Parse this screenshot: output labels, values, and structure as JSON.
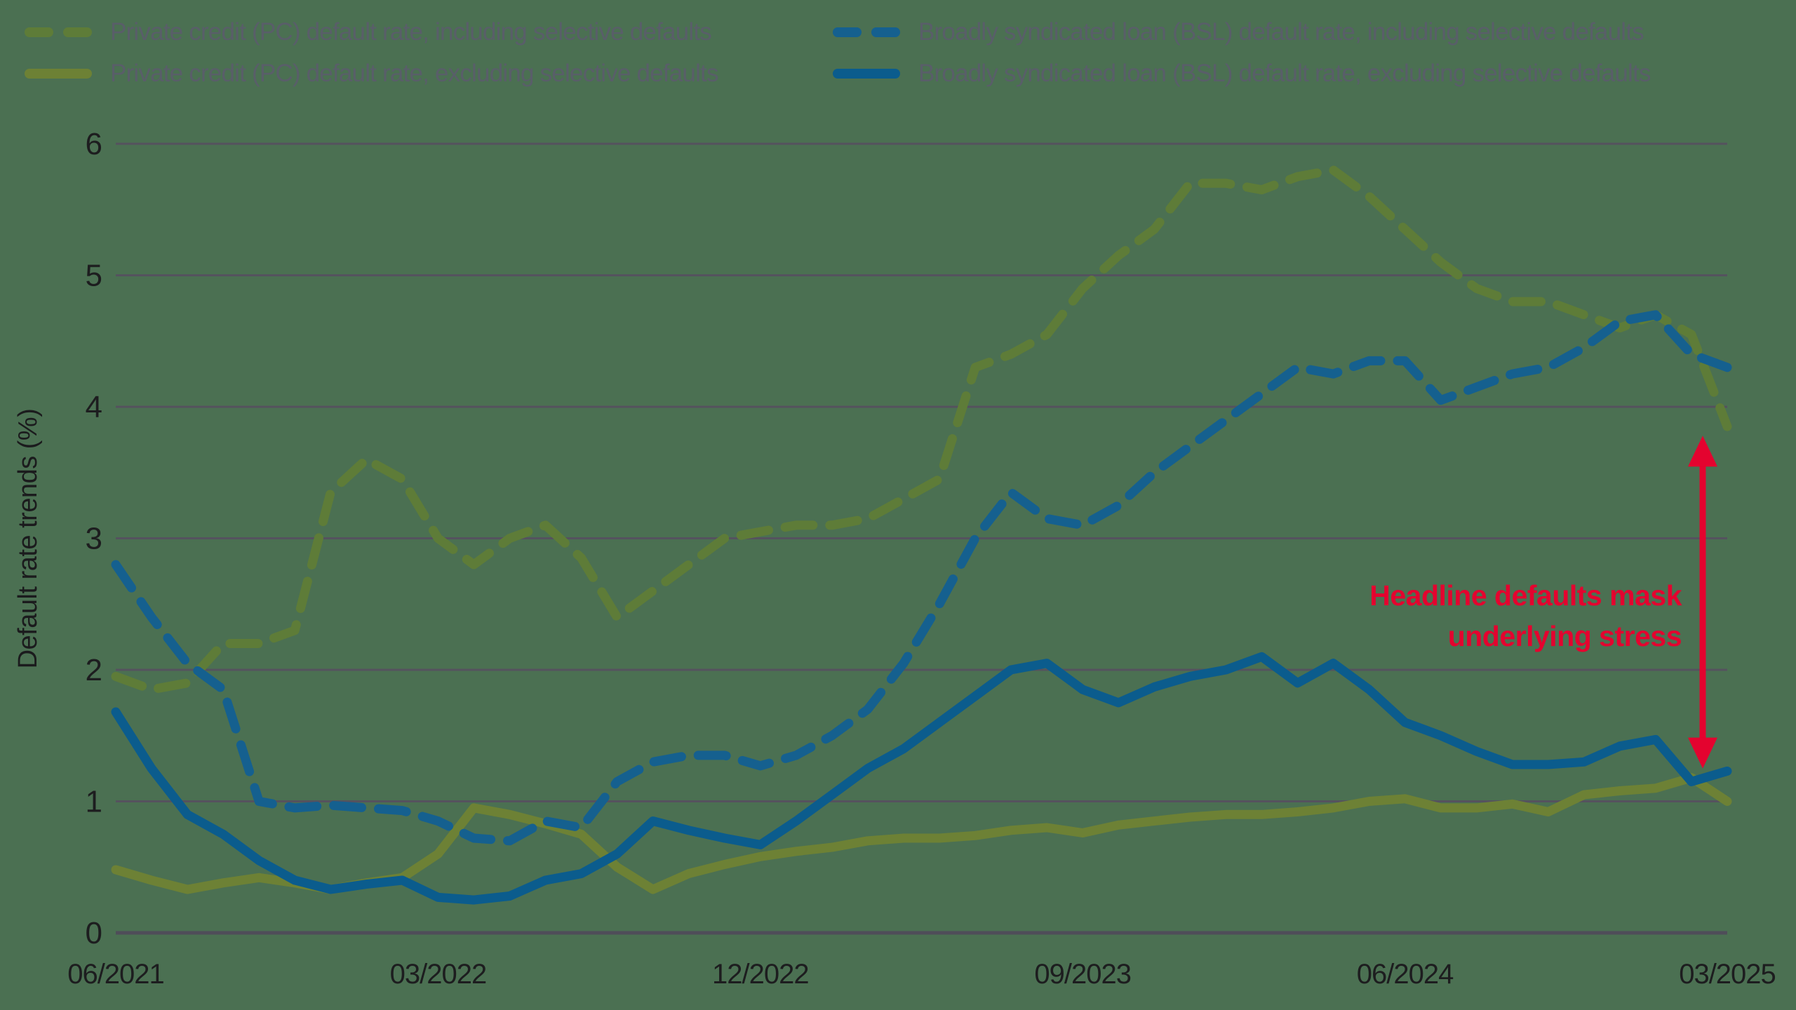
{
  "legend": {
    "items": [
      {
        "id": "pc-incl",
        "label": "Private credit (PC) default rate, including selective defaults",
        "color": "#5e7c38",
        "dashed": true
      },
      {
        "id": "pc-excl",
        "label": "Private credit (PC) default rate, excluding selective defaults",
        "color": "#6d8135",
        "dashed": false
      },
      {
        "id": "bsl-incl",
        "label": "Broadly syndicated loan (BSL) default rate, including selective defaults",
        "color": "#15608f",
        "dashed": true
      },
      {
        "id": "bsl-excl",
        "label": "Broadly syndicated loan (BSL) default rate, excluding selective defaults",
        "color": "#0b5c8d",
        "dashed": false
      }
    ]
  },
  "chart_data": {
    "type": "line",
    "title": "",
    "xlabel": "",
    "ylabel": "Default rate trends (%)",
    "ylim": [
      0,
      6
    ],
    "yticks": [
      0,
      1,
      2,
      3,
      4,
      5,
      6
    ],
    "grid": true,
    "legend_position": "top",
    "x_count": 46,
    "x_start": "06/2021",
    "x_step": "1 month",
    "x_tick_labels": [
      "06/2021",
      "03/2022",
      "12/2022",
      "09/2023",
      "06/2024",
      "03/2025"
    ],
    "x_tick_positions": [
      0,
      9,
      18,
      27,
      36,
      45
    ],
    "series": [
      {
        "name": "Private credit (PC) default rate, including selective defaults",
        "color": "#5e7c38",
        "dashed": true,
        "values": [
          1.95,
          1.85,
          1.9,
          2.2,
          2.2,
          2.3,
          3.35,
          3.6,
          3.45,
          3.0,
          2.8,
          3.0,
          3.1,
          2.85,
          2.4,
          2.6,
          2.8,
          3.0,
          3.05,
          3.1,
          3.1,
          3.15,
          3.3,
          3.45,
          4.3,
          4.4,
          4.55,
          4.9,
          5.15,
          5.35,
          5.7,
          5.7,
          5.65,
          5.75,
          5.8,
          5.6,
          5.35,
          5.1,
          4.9,
          4.8,
          4.8,
          4.7,
          4.6,
          4.7,
          4.55,
          3.85
        ]
      },
      {
        "name": "Private credit (PC) default rate, excluding selective defaults",
        "color": "#6d8135",
        "dashed": false,
        "values": [
          0.48,
          0.4,
          0.33,
          0.38,
          0.42,
          0.38,
          0.33,
          0.38,
          0.42,
          0.6,
          0.95,
          0.9,
          0.83,
          0.75,
          0.5,
          0.33,
          0.45,
          0.52,
          0.58,
          0.62,
          0.65,
          0.7,
          0.72,
          0.72,
          0.74,
          0.78,
          0.8,
          0.76,
          0.82,
          0.85,
          0.88,
          0.9,
          0.9,
          0.92,
          0.95,
          1.0,
          1.02,
          0.95,
          0.95,
          0.98,
          0.92,
          1.05,
          1.08,
          1.1,
          1.18,
          1.0
        ]
      },
      {
        "name": "Broadly syndicated loan (BSL) default rate, including selective defaults",
        "color": "#15608f",
        "dashed": true,
        "values": [
          2.8,
          2.4,
          2.05,
          1.85,
          1.0,
          0.95,
          0.97,
          0.95,
          0.93,
          0.85,
          0.72,
          0.7,
          0.85,
          0.8,
          1.15,
          1.3,
          1.35,
          1.35,
          1.27,
          1.35,
          1.5,
          1.7,
          2.05,
          2.5,
          3.0,
          3.35,
          3.15,
          3.1,
          3.25,
          3.5,
          3.7,
          3.9,
          4.1,
          4.3,
          4.25,
          4.35,
          4.35,
          4.05,
          4.15,
          4.25,
          4.3,
          4.45,
          4.65,
          4.7,
          4.4,
          4.3
        ]
      },
      {
        "name": "Broadly syndicated loan (BSL) default rate, excluding selective defaults",
        "color": "#0b5c8d",
        "dashed": false,
        "values": [
          1.68,
          1.25,
          0.9,
          0.75,
          0.55,
          0.4,
          0.33,
          0.37,
          0.4,
          0.27,
          0.25,
          0.28,
          0.4,
          0.45,
          0.6,
          0.85,
          0.78,
          0.72,
          0.67,
          0.85,
          1.05,
          1.25,
          1.4,
          1.6,
          1.8,
          2.0,
          2.05,
          1.85,
          1.75,
          1.87,
          1.95,
          2.0,
          2.1,
          1.9,
          2.05,
          1.85,
          1.6,
          1.5,
          1.38,
          1.28,
          1.28,
          1.3,
          1.42,
          1.47,
          1.15,
          1.23
        ]
      }
    ]
  },
  "annotation": {
    "line1": "Headline defaults mask",
    "line2": "underlying stress",
    "color": "#e4032f",
    "arrow": {
      "month": 45,
      "from_value": 3.78,
      "to_value": 1.25
    }
  },
  "style": {
    "background": "#4b7052",
    "gridline_color": "#55525e",
    "axis_line_color": "#4f4d59",
    "tick_text_color": "#1d1d1f",
    "legend_text_color": "#595e69"
  }
}
